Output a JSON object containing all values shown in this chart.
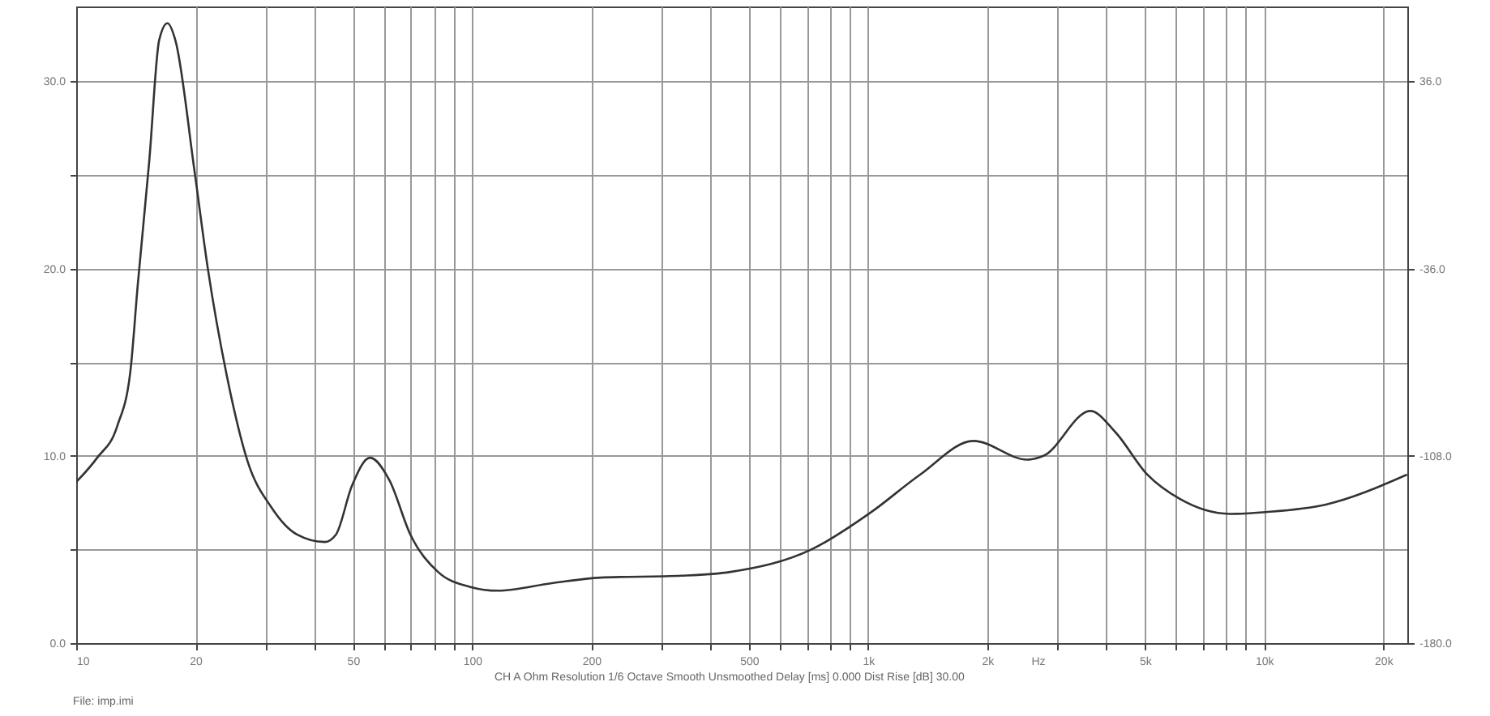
{
  "chart_data": {
    "type": "line",
    "xlabel": "Hz",
    "log": "x",
    "grid": true,
    "marker": "none",
    "line_style": "solid",
    "x": [
      10,
      11.3,
      12.7,
      13.7,
      14.3,
      15.3,
      16.2,
      17,
      17.8,
      19.9,
      21.5,
      24,
      27.2,
      31,
      36.1,
      42.4,
      45.3,
      49.7,
      55.2,
      61.8,
      69.8,
      82,
      99,
      116,
      159,
      211,
      338,
      449,
      719,
      1019,
      1353,
      1846,
      2522,
      2772,
      3642,
      4198,
      5071,
      6124,
      8204,
      10100,
      14320,
      22960
    ],
    "series": [
      {
        "color": "#333333",
        "values": [
          8.6,
          9.9,
          11.6,
          14.5,
          19.1,
          25.8,
          32.2,
          33.1,
          32.2,
          25.2,
          20,
          14.3,
          9.6,
          7.3,
          5.8,
          5.4,
          5.8,
          8.4,
          9.9,
          8.7,
          5.8,
          3.8,
          3,
          2.8,
          3.2,
          3.5,
          3.6,
          3.8,
          5,
          7,
          9,
          10.8,
          9.8,
          10,
          12.4,
          11.3,
          9,
          7.7,
          6.9,
          7,
          7.4,
          9
        ]
      }
    ],
    "xlim": [
      10,
      23000
    ],
    "xticks": [
      10,
      20,
      {
        "value": 30,
        "label": null
      },
      {
        "value": 40,
        "label": null
      },
      50,
      {
        "value": 60,
        "label": null
      },
      {
        "value": 70,
        "label": null
      },
      {
        "value": 80,
        "label": null
      },
      {
        "value": 90,
        "label": null
      },
      100,
      200,
      {
        "value": 300,
        "label": null
      },
      {
        "value": 400,
        "label": null
      },
      500,
      {
        "value": 600,
        "label": null
      },
      {
        "value": 700,
        "label": null
      },
      {
        "value": 800,
        "label": null
      },
      {
        "value": 900,
        "label": null
      },
      {
        "value": 1000,
        "label": "1k"
      },
      {
        "value": 2000,
        "label": "2k"
      },
      {
        "value": 3000,
        "label": null
      },
      {
        "value": 4000,
        "label": null
      },
      {
        "value": 5000,
        "label": "5k"
      },
      {
        "value": 6000,
        "label": null
      },
      {
        "value": 7000,
        "label": null
      },
      {
        "value": 8000,
        "label": null
      },
      {
        "value": 9000,
        "label": null
      },
      {
        "value": 10000,
        "label": "10k"
      },
      {
        "value": 20000,
        "label": "20k"
      }
    ],
    "ylim": [
      0,
      34
    ],
    "yticks": [
      {
        "value": 0,
        "label": "0.0"
      },
      {
        "value": 5,
        "label": null
      },
      {
        "value": 10,
        "label": "10.0"
      },
      {
        "value": 15,
        "label": null
      },
      {
        "value": 20,
        "label": "20.0"
      },
      {
        "value": 25,
        "label": null
      },
      {
        "value": 30,
        "label": "30.0"
      }
    ],
    "y2lim": [
      -180,
      64.8
    ],
    "y2ticks": [
      {
        "value": -180,
        "label": "-180.0"
      },
      {
        "value": -108,
        "label": "-108.0"
      },
      {
        "value": -36,
        "label": "-36.0"
      },
      {
        "value": 36,
        "label": "36.0"
      }
    ],
    "annotations": [
      "CH A   Ohm   Resolution 1/6 Octave   Smooth Unsmoothed   Delay [ms] 0.000   Dist Rise [dB] 30.00",
      "File: imp.imi"
    ]
  }
}
